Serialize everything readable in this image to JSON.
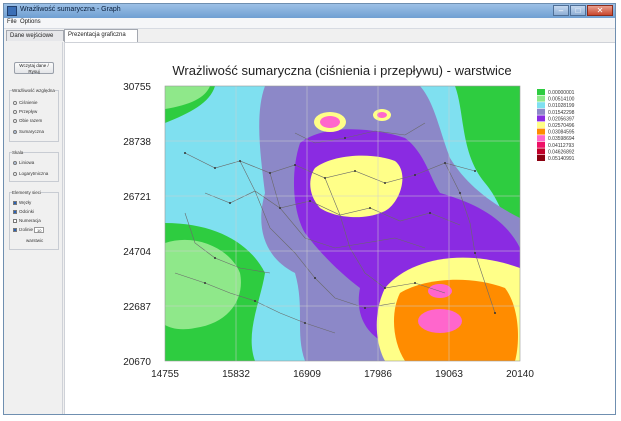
{
  "window": {
    "title": "Wrażliwość sumaryczna - Graph",
    "controls": [
      "–",
      "□",
      "✕"
    ]
  },
  "menu": [
    "File",
    "Options"
  ],
  "tabs": [
    {
      "label": "Dane wejściowe",
      "active": false
    },
    {
      "label": "Prezentacja graficzna",
      "active": true
    }
  ],
  "left_panel": {
    "button_label": "Wczytaj dane / Rysuj",
    "group1": {
      "label": "Wrażliwość względna",
      "options": [
        {
          "label": "Ciśnienie",
          "checked": false
        },
        {
          "label": "Przepływ",
          "checked": false
        },
        {
          "label": "Obie razem",
          "checked": false
        },
        {
          "label": "Sumaryczna",
          "checked": true
        }
      ]
    },
    "group2": {
      "label": "Skala",
      "options": [
        {
          "label": "Liniowa",
          "checked": true
        },
        {
          "label": "Logarytmiczna",
          "checked": false
        }
      ]
    },
    "group3": {
      "label": "Elementy sieci",
      "options": [
        {
          "label": "Węzły",
          "checked": true
        },
        {
          "label": "Odcinki",
          "checked": true
        },
        {
          "label": "Numeracja",
          "checked": false
        },
        {
          "label": "Izolinie",
          "checked": true
        }
      ],
      "spin_value": "10",
      "spin_label": "warstwic"
    }
  },
  "chart_data": {
    "type": "heatmap",
    "title": "Wrażliwość sumaryczna (ciśnienia i przepływu) - warstwice",
    "x_ticks": [
      "14755",
      "15832",
      "16909",
      "17986",
      "19063",
      "20140"
    ],
    "y_ticks": [
      "30755",
      "28738",
      "26721",
      "24704",
      "22687",
      "20670"
    ],
    "xlim": [
      14755,
      20140
    ],
    "ylim": [
      20670,
      30755
    ],
    "grid": true,
    "legend_position": "right",
    "levels": [
      {
        "value": "0.00000001",
        "color": "#2ecc40"
      },
      {
        "value": "0.00514100",
        "color": "#8fe88a"
      },
      {
        "value": "0.01028199",
        "color": "#7fe0f0"
      },
      {
        "value": "0.01542298",
        "color": "#8c88c8"
      },
      {
        "value": "0.02056397",
        "color": "#8a2be2"
      },
      {
        "value": "0.02570496",
        "color": "#ffff88"
      },
      {
        "value": "0.03084595",
        "color": "#ff8c00"
      },
      {
        "value": "0.03598694",
        "color": "#ff66cc"
      },
      {
        "value": "0.04112793",
        "color": "#ee1166"
      },
      {
        "value": "0.04626892",
        "color": "#c0002a"
      },
      {
        "value": "0.05140991",
        "color": "#8b0010"
      }
    ]
  }
}
